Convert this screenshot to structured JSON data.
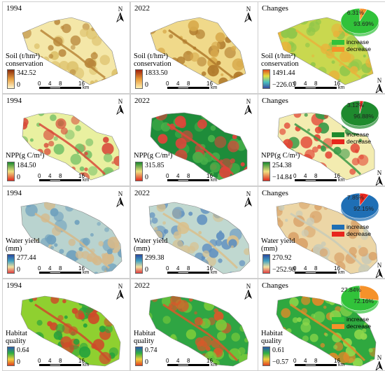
{
  "column_titles": [
    "1994",
    "2022",
    "Changes"
  ],
  "north_label": "N",
  "scale_bar": {
    "ticks": [
      "0",
      "4",
      "8",
      "16"
    ],
    "unit": "km"
  },
  "pie_legend": {
    "increase": "increase",
    "decrease": "decrease"
  },
  "rows": [
    {
      "service": "soil",
      "legend_1994": {
        "name": "Soil  (t/hm²)\nconservation",
        "max": "342.52",
        "min": "0"
      },
      "legend_2022": {
        "name": "Soil  (t/hm²)\nconservation",
        "max": "1833.50",
        "min": "0"
      },
      "legend_changes": {
        "name": "Soil  (t/hm²)\nconservation",
        "max": "1491.44",
        "min": "−226.03"
      },
      "pie": {
        "increase": 93.69,
        "decrease": 6.31,
        "increase_label": "93.69%",
        "decrease_label": "6.31%",
        "colors": {
          "increase": "#31c23a",
          "decrease": "#f5922a"
        }
      }
    },
    {
      "service": "npp",
      "legend_1994": {
        "name": "NPP(g C/m²)",
        "max": "184.50",
        "min": "0"
      },
      "legend_2022": {
        "name": "NPP(g C/m²)",
        "max": "315.85",
        "min": "0"
      },
      "legend_changes": {
        "name": "NPP(g C/m²)",
        "max": "254.38",
        "min": "−14.84"
      },
      "pie": {
        "increase": 96.88,
        "decrease": 3.12,
        "increase_label": "96.88%",
        "decrease_label": "3.12%",
        "colors": {
          "increase": "#1f8a2e",
          "decrease": "#e8261d"
        }
      }
    },
    {
      "service": "water",
      "legend_1994": {
        "name": "Water yield\n(mm)",
        "max": "277.44",
        "min": "0"
      },
      "legend_2022": {
        "name": "Water yield\n(mm)",
        "max": "299.38",
        "min": "0"
      },
      "legend_changes": {
        "name": "Water yield\n(mm)",
        "max": "270.92",
        "min": "−252.98"
      },
      "pie": {
        "increase": 92.15,
        "decrease": 7.85,
        "increase_label": "92.15%",
        "decrease_label": "7.85%",
        "colors": {
          "increase": "#1f6fb5",
          "decrease": "#e8261d"
        }
      }
    },
    {
      "service": "habitat",
      "legend_1994": {
        "name": "Habitat\nquality",
        "max": "0.64",
        "min": "0"
      },
      "legend_2022": {
        "name": "Habitat\nquality",
        "max": "0.74",
        "min": "0"
      },
      "legend_changes": {
        "name": "Habitat\nquality",
        "max": "0.61",
        "min": "−0.57"
      },
      "pie": {
        "increase": 72.16,
        "decrease": 27.84,
        "increase_label": "72.16%",
        "decrease_label": "27.84%",
        "colors": {
          "increase": "#31c23a",
          "decrease": "#f5922a"
        }
      }
    }
  ],
  "colors": {
    "soil_1994": [
      "#f4e7a8",
      "#dcc06a",
      "#b8863a"
    ],
    "soil_2022": [
      "#f0d98a",
      "#d8aa4c",
      "#b07a2c"
    ],
    "soil_change": [
      "#c9d84f",
      "#8ec64a",
      "#e8b43c"
    ],
    "npp_1994": [
      "#e9f0a0",
      "#7cc36a",
      "#d84a3a"
    ],
    "npp_2022": [
      "#1e8c3a",
      "#49b24a",
      "#e0443a"
    ],
    "npp_change": [
      "#f3ecb0",
      "#e24434",
      "#3b9a48"
    ],
    "water_1994": [
      "#b9d3cf",
      "#6fa0bd",
      "#d6b98a"
    ],
    "water_2022": [
      "#c0d8d0",
      "#5e8fbf",
      "#d9c08c"
    ],
    "water_change": [
      "#ecd6a6",
      "#d9a36a",
      "#c8cbb8"
    ],
    "hab_1994": [
      "#8fd030",
      "#27a23c",
      "#cf4a2a"
    ],
    "hab_2022": [
      "#2fa543",
      "#7ccc3a",
      "#d8582a"
    ],
    "hab_change": [
      "#2fa83f",
      "#8fd84b",
      "#e08a2a"
    ],
    "cbar_soil_1994": "linear-gradient(to top,#fff6d0,#e8a040,#8a2a0a)",
    "cbar_soil_2022": "linear-gradient(to top,#fff0b0,#e89a38,#a0200a)",
    "cbar_soil_change": "linear-gradient(to top,#3a4aa0,#4bc0c0,#e0e040,#e05020)",
    "cbar_npp": "linear-gradient(to top,#e02a20,#f0e080,#1a8a2e)",
    "cbar_water": "linear-gradient(to top,#e04040,#f0e0a0,#40a0c0,#2a4aa0)",
    "cbar_hab": "linear-gradient(to top,#e04020,#f0d040,#30b040,#2a5ab0)"
  }
}
